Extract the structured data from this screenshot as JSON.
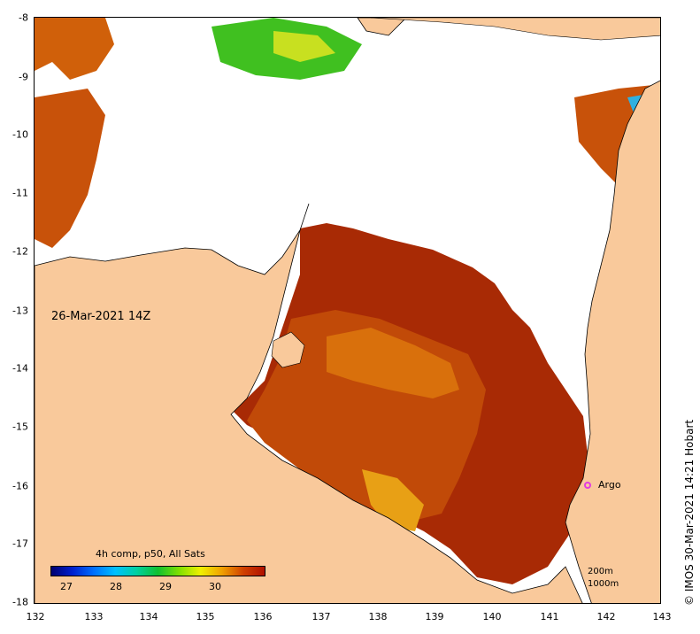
{
  "map": {
    "timestamp": "26-Mar-2021 14Z",
    "x_ticks": [
      "132",
      "133",
      "134",
      "135",
      "136",
      "137",
      "138",
      "139",
      "140",
      "141",
      "142",
      "143"
    ],
    "y_ticks": [
      "-8",
      "-9",
      "-10",
      "-11",
      "-12",
      "-13",
      "-14",
      "-15",
      "-16",
      "-17",
      "-18"
    ],
    "legend": {
      "title": "4h comp, p50, All Sats",
      "ticks": [
        "27",
        "28",
        "29",
        "30"
      ]
    },
    "argo": {
      "label": "Argo",
      "color": "#e23be2"
    },
    "contours": [
      "200m",
      "1000m"
    ],
    "credit": "© IMOS 30-Mar-2021 14:21 Hobart",
    "colors": {
      "land": "#f9c99b",
      "cloud": "#ffffff",
      "warm": "#b01000",
      "mid": "#d05a00",
      "cool": "#20b020"
    }
  }
}
